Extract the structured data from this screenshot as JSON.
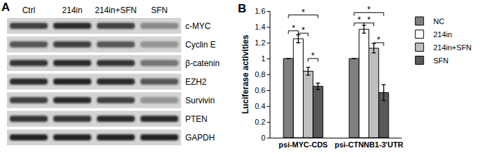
{
  "panel_a": {
    "label": "A",
    "columns": [
      "Ctrl",
      "214in",
      "214in+SFN",
      "SFN"
    ],
    "rows": [
      {
        "label": "c-MYC",
        "intensity": [
          0.7,
          0.8,
          0.7,
          0.35
        ]
      },
      {
        "label": "Cyclin E",
        "intensity": [
          0.6,
          0.7,
          0.6,
          0.3
        ]
      },
      {
        "label": "β-catenin",
        "intensity": [
          0.75,
          0.8,
          0.75,
          0.45
        ]
      },
      {
        "label": "EZH2",
        "intensity": [
          0.8,
          0.85,
          0.8,
          0.6
        ]
      },
      {
        "label": "Survivin",
        "intensity": [
          0.7,
          0.8,
          0.7,
          0.3
        ]
      },
      {
        "label": "PTEN",
        "intensity": [
          0.75,
          0.75,
          0.8,
          0.8
        ]
      },
      {
        "label": "GAPDH",
        "intensity": [
          0.85,
          0.85,
          0.85,
          0.85
        ]
      }
    ]
  },
  "chart_data": {
    "panel_label": "B",
    "type": "bar",
    "categories": [
      "psi-MYC-CDS",
      "psi-CTNNB1-3'UTR"
    ],
    "series": [
      {
        "name": "NC",
        "color": "#808080",
        "values": [
          1.0,
          1.0
        ],
        "errors": [
          0,
          0
        ]
      },
      {
        "name": "214in",
        "color": "#ffffff",
        "values": [
          1.25,
          1.37
        ],
        "errors": [
          0.05,
          0.05
        ]
      },
      {
        "name": "214in+SFN",
        "color": "#bfbfbf",
        "values": [
          0.84,
          1.13
        ],
        "errors": [
          0.05,
          0.06
        ]
      },
      {
        "name": "SFN",
        "color": "#595959",
        "values": [
          0.65,
          0.57
        ],
        "errors": [
          0.04,
          0.1
        ]
      }
    ],
    "y_label": "Luciferase activities",
    "ylim": [
      0,
      1.6
    ],
    "yticks": [
      0,
      0.2,
      0.4,
      0.6,
      0.8,
      1,
      1.2,
      1.4,
      1.6
    ],
    "grid": false,
    "legend": "right",
    "significance": [
      {
        "category": 0,
        "from": 0,
        "to": 3,
        "y": 1.55,
        "text": "*"
      },
      {
        "category": 0,
        "from": 0,
        "to": 1,
        "y": 1.35,
        "text": "*"
      },
      {
        "category": 0,
        "from": 1,
        "to": 2,
        "y": 1.32,
        "text": "*"
      },
      {
        "category": 0,
        "from": 2,
        "to": 3,
        "y": 1.0,
        "text": "*"
      },
      {
        "category": 1,
        "from": 0,
        "to": 3,
        "y": 1.58,
        "text": "*"
      },
      {
        "category": 1,
        "from": 0,
        "to": 1,
        "y": 1.45,
        "text": "*"
      },
      {
        "category": 1,
        "from": 1,
        "to": 2,
        "y": 1.45,
        "text": "*"
      },
      {
        "category": 1,
        "from": 2,
        "to": 3,
        "y": 1.2,
        "text": "*"
      }
    ]
  }
}
